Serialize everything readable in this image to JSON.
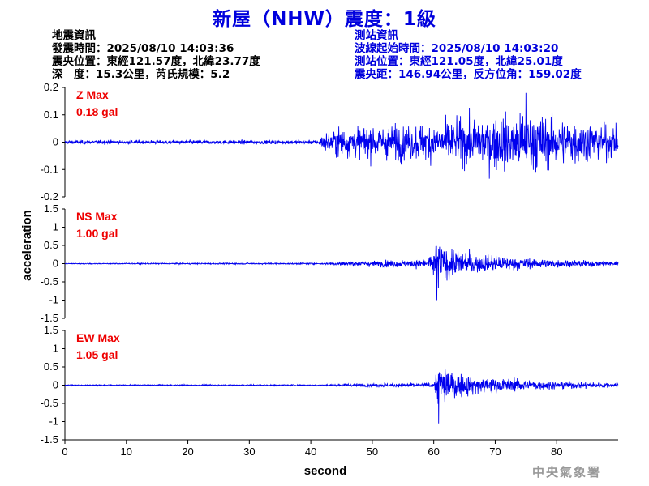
{
  "header": {
    "title": "新屋（NHW）震度：1級"
  },
  "earthquake_info": {
    "heading": "地震資訊",
    "origin_time": "發震時間：2025/08/10 14:03:36",
    "epicenter": "震央位置：東經121.57度，北緯23.77度",
    "depth_magnitude": "深　度：15.3公里，芮氏規模：5.2"
  },
  "station_info": {
    "heading": "測站資訊",
    "wave_start": "波線起始時間：2025/08/10 14:03:20",
    "station_location": "測站位置：東經121.05度，北緯25.01度",
    "distance_azimuth": "震央距：146.94公里，反方位角：159.02度"
  },
  "watermark": "中央氣象署",
  "chart_data": {
    "type": "line",
    "xlabel": "second",
    "ylabel": "acceleration",
    "xlim": [
      0,
      90
    ],
    "xticks": [
      "0",
      "10",
      "20",
      "30",
      "40",
      "50",
      "60",
      "70",
      "80"
    ],
    "line_color": "#0000ee",
    "label_color": "#ee0000",
    "panels": [
      {
        "name": "Z",
        "max_label": "Z Max",
        "max_value": "0.18 gal",
        "ylim": [
          -0.2,
          0.2
        ],
        "yticks": [
          "0.2",
          "0.1",
          "0",
          "-0.1",
          "-0.2"
        ],
        "peak": 0.18,
        "envelope": [
          {
            "t": 0,
            "amp": 0.01
          },
          {
            "t": 41,
            "amp": 0.01
          },
          {
            "t": 42,
            "amp": 0.05
          },
          {
            "t": 45,
            "amp": 0.08
          },
          {
            "t": 60,
            "amp": 0.1
          },
          {
            "t": 75,
            "amp": 0.16
          },
          {
            "t": 90,
            "amp": 0.08
          }
        ]
      },
      {
        "name": "NS",
        "max_label": "NS Max",
        "max_value": "1.00 gal",
        "ylim": [
          -1.5,
          1.5
        ],
        "yticks": [
          "1.5",
          "1",
          "0.5",
          "0",
          "-0.5",
          "-1",
          "-1.5"
        ],
        "peak": 1.0,
        "envelope": [
          {
            "t": 0,
            "amp": 0.02
          },
          {
            "t": 42,
            "amp": 0.03
          },
          {
            "t": 45,
            "amp": 0.08
          },
          {
            "t": 55,
            "amp": 0.15
          },
          {
            "t": 59,
            "amp": 0.18
          },
          {
            "t": 60.5,
            "amp": 0.9
          },
          {
            "t": 63,
            "amp": 0.55
          },
          {
            "t": 70,
            "amp": 0.3
          },
          {
            "t": 80,
            "amp": 0.15
          },
          {
            "t": 90,
            "amp": 0.1
          }
        ]
      },
      {
        "name": "EW",
        "max_label": "EW Max",
        "max_value": "1.05 gal",
        "ylim": [
          -1.5,
          1.5
        ],
        "yticks": [
          "1.5",
          "1",
          "0.5",
          "0",
          "-0.5",
          "-1",
          "-1.5"
        ],
        "peak": 1.05,
        "envelope": [
          {
            "t": 0,
            "amp": 0.02
          },
          {
            "t": 42,
            "amp": 0.03
          },
          {
            "t": 45,
            "amp": 0.05
          },
          {
            "t": 55,
            "amp": 0.08
          },
          {
            "t": 60,
            "amp": 0.1
          },
          {
            "t": 60.8,
            "amp": 0.95
          },
          {
            "t": 63,
            "amp": 0.5
          },
          {
            "t": 70,
            "amp": 0.3
          },
          {
            "t": 80,
            "amp": 0.15
          },
          {
            "t": 90,
            "amp": 0.1
          }
        ]
      }
    ]
  }
}
